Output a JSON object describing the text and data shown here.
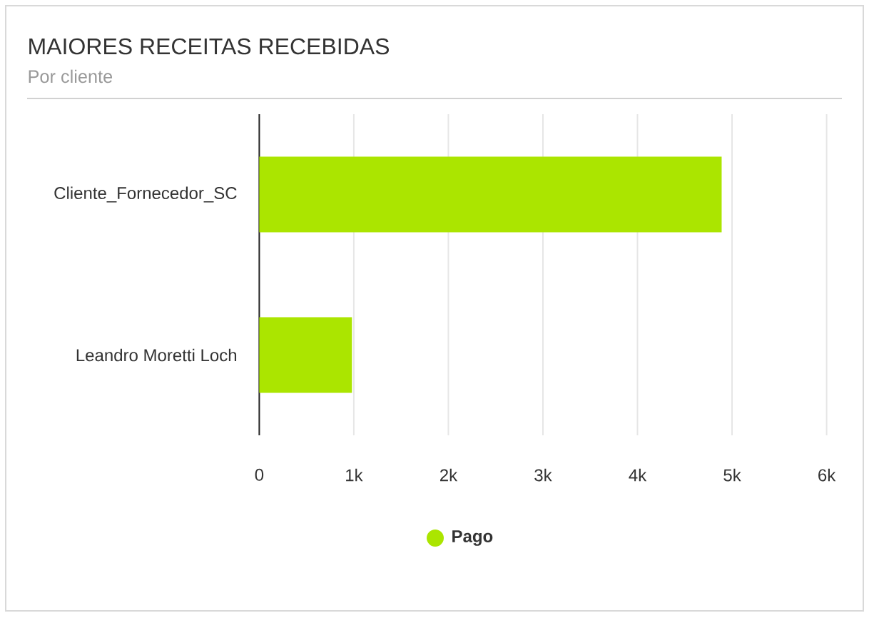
{
  "chart_data": {
    "type": "bar",
    "orientation": "horizontal",
    "title": "MAIORES RECEITAS RECEBIDAS",
    "subtitle": "Por cliente",
    "categories": [
      "Cliente_Fornecedor_SC",
      "Leandro Moretti Loch"
    ],
    "series": [
      {
        "name": "Pago",
        "color": "#abe500",
        "values": [
          4890,
          980
        ]
      }
    ],
    "xlim": [
      0,
      6000
    ],
    "xticks": [
      0,
      {
        "value": 1000,
        "label": "1k"
      },
      {
        "value": 2000,
        "label": "2k"
      },
      {
        "value": 3000,
        "label": "3k"
      },
      {
        "value": 4000,
        "label": "4k"
      },
      {
        "value": 5000,
        "label": "5k"
      },
      {
        "value": 6000,
        "label": "6k"
      }
    ],
    "grid": "x",
    "legend": "bottom"
  }
}
